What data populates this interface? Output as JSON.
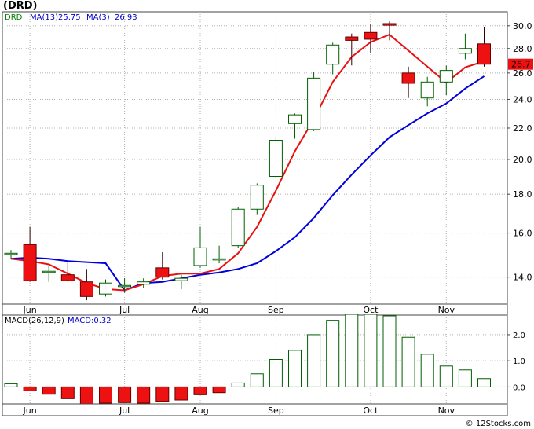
{
  "chart_data": [
    {
      "type": "candlestick",
      "symbol": "(DRD)",
      "legend": [
        {
          "label": "DRD",
          "color": "#008000"
        },
        {
          "label": "MA(13)",
          "value": "25.75",
          "color": "#0000cc"
        },
        {
          "label": "MA(3)",
          "value": "26.93",
          "color": "#0000cc"
        }
      ],
      "x_labels": [
        {
          "label": "Jun",
          "index": 1
        },
        {
          "label": "Jul",
          "index": 6
        },
        {
          "label": "Aug",
          "index": 10
        },
        {
          "label": "Sep",
          "index": 14
        },
        {
          "label": "Oct",
          "index": 19
        },
        {
          "label": "Nov",
          "index": 23
        }
      ],
      "y_scale": "log",
      "ylim": [
        12.9,
        31.3
      ],
      "y_ticks": [
        "14.0",
        "16.0",
        "18.0",
        "20.0",
        "22.0",
        "24.0",
        "26.0",
        "28.0",
        "30.0"
      ],
      "last_price_label": "26.7",
      "candles": [
        {
          "o": 15.05,
          "h": 15.2,
          "l": 14.8,
          "c": 15.05
        },
        {
          "o": 15.45,
          "h": 16.3,
          "l": 13.8,
          "c": 13.85
        },
        {
          "o": 14.25,
          "h": 14.5,
          "l": 13.8,
          "c": 14.25
        },
        {
          "o": 14.1,
          "h": 14.7,
          "l": 13.8,
          "c": 13.85
        },
        {
          "o": 13.8,
          "h": 14.35,
          "l": 13.05,
          "c": 13.2
        },
        {
          "o": 13.3,
          "h": 13.9,
          "l": 13.2,
          "c": 13.75
        },
        {
          "o": 13.65,
          "h": 13.95,
          "l": 13.35,
          "c": 13.65
        },
        {
          "o": 13.7,
          "h": 13.95,
          "l": 13.55,
          "c": 13.8
        },
        {
          "o": 14.4,
          "h": 15.1,
          "l": 13.9,
          "c": 14.0
        },
        {
          "o": 13.85,
          "h": 14.1,
          "l": 13.5,
          "c": 13.95
        },
        {
          "o": 14.5,
          "h": 16.3,
          "l": 14.4,
          "c": 15.3
        },
        {
          "o": 14.8,
          "h": 15.4,
          "l": 14.6,
          "c": 14.8
        },
        {
          "o": 15.4,
          "h": 17.3,
          "l": 15.3,
          "c": 17.2
        },
        {
          "o": 17.2,
          "h": 18.6,
          "l": 16.9,
          "c": 18.5
        },
        {
          "o": 19.0,
          "h": 21.4,
          "l": 18.9,
          "c": 21.2
        },
        {
          "o": 22.3,
          "h": 23.0,
          "l": 21.3,
          "c": 22.9
        },
        {
          "o": 21.9,
          "h": 26.1,
          "l": 21.8,
          "c": 25.6
        },
        {
          "o": 26.7,
          "h": 28.5,
          "l": 25.9,
          "c": 28.3
        },
        {
          "o": 29.0,
          "h": 29.3,
          "l": 26.6,
          "c": 28.7
        },
        {
          "o": 29.4,
          "h": 30.2,
          "l": 27.6,
          "c": 28.8
        },
        {
          "o": 30.2,
          "h": 30.4,
          "l": 28.7,
          "c": 30.05
        },
        {
          "o": 26.0,
          "h": 26.5,
          "l": 24.1,
          "c": 25.2
        },
        {
          "o": 24.1,
          "h": 25.7,
          "l": 23.5,
          "c": 25.3
        },
        {
          "o": 25.3,
          "h": 26.6,
          "l": 24.3,
          "c": 26.2
        },
        {
          "o": 27.6,
          "h": 29.3,
          "l": 27.1,
          "c": 28.0
        },
        {
          "o": 28.4,
          "h": 29.9,
          "l": 26.5,
          "c": 26.7
        }
      ],
      "ma3": [
        14.8,
        14.7,
        14.55,
        14.15,
        13.75,
        13.5,
        13.45,
        13.7,
        14.05,
        14.15,
        14.15,
        14.35,
        15.05,
        16.3,
        18.2,
        20.5,
        22.6,
        25.3,
        27.3,
        28.55,
        29.2,
        null,
        null,
        25.25,
        26.45,
        26.93
      ],
      "ma13": [
        14.8,
        14.85,
        14.8,
        14.7,
        14.65,
        14.6,
        13.45,
        13.75,
        13.8,
        13.95,
        14.1,
        14.2,
        14.35,
        14.6,
        15.15,
        15.8,
        16.75,
        17.95,
        19.1,
        20.25,
        21.4,
        22.2,
        23.0,
        23.7,
        24.8,
        25.75
      ]
    },
    {
      "type": "bar",
      "title": "MACD(26,12,9)",
      "value_label": "MACD:0.32",
      "ylim": [
        -0.65,
        2.75
      ],
      "y_ticks": [
        "0.0",
        "1.0",
        "2.0"
      ],
      "values": [
        0.12,
        -0.15,
        -0.28,
        -0.45,
        -0.65,
        -0.62,
        -0.6,
        -0.62,
        -0.55,
        -0.5,
        -0.3,
        -0.22,
        0.15,
        0.5,
        1.05,
        1.4,
        2.0,
        2.55,
        2.78,
        2.78,
        2.72,
        1.9,
        1.25,
        0.8,
        0.65,
        0.32
      ]
    }
  ],
  "footer": {
    "credit": "© 12Stocks.com"
  }
}
